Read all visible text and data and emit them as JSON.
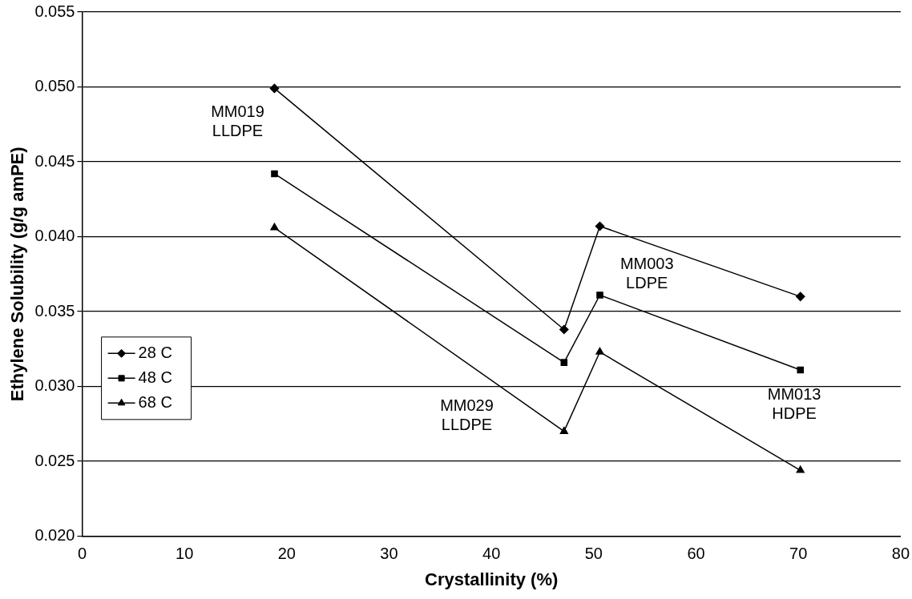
{
  "chart_data": {
    "type": "line",
    "xlabel": "Crystallinity (%)",
    "ylabel": "Ethylene Solubility (g/g amPE)",
    "series": [
      {
        "name": "28 C",
        "color": "#000000",
        "marker": "diamond",
        "x": [
          18.8,
          47.1,
          50.6,
          70.2
        ],
        "values": [
          0.0499,
          0.0338,
          0.0407,
          0.036
        ]
      },
      {
        "name": "48 C",
        "color": "#000000",
        "marker": "square",
        "x": [
          18.8,
          47.1,
          50.6,
          70.2
        ],
        "values": [
          0.0442,
          0.0316,
          0.0361,
          0.0311
        ]
      },
      {
        "name": "68 C",
        "color": "#000000",
        "marker": "triangle",
        "x": [
          18.8,
          47.1,
          50.6,
          70.2
        ],
        "values": [
          0.0406,
          0.027,
          0.0323,
          0.0244
        ]
      }
    ],
    "annotations": [
      "MM019\nLLDPE",
      "MM029\nLLDPE",
      "MM003\nLDPE",
      "MM013\nHDPE"
    ],
    "xlim": [
      0,
      80
    ],
    "xticks": [
      0,
      10,
      20,
      30,
      40,
      50,
      60,
      70,
      80
    ],
    "ylim": [
      0.02,
      0.055
    ],
    "yticks": [
      {
        "value": 0.02,
        "label": "0.020"
      },
      {
        "value": 0.025,
        "label": "0.025"
      },
      {
        "value": 0.03,
        "label": "0.030"
      },
      {
        "value": 0.035,
        "label": "0.035"
      },
      {
        "value": 0.04,
        "label": "0.040"
      },
      {
        "value": 0.045,
        "label": "0.045"
      },
      {
        "value": 0.05,
        "label": "0.050"
      },
      {
        "value": 0.055,
        "label": "0.055"
      }
    ],
    "grid": "y",
    "legend": "left",
    "line_style": "solid"
  }
}
